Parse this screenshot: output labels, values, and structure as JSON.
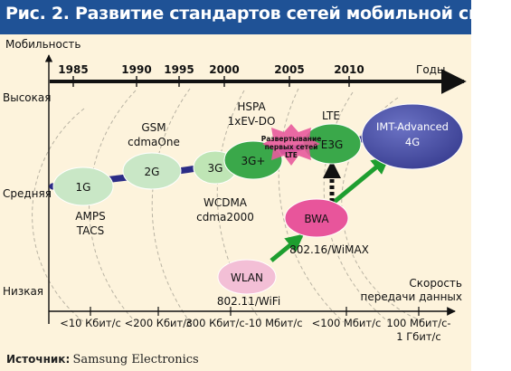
{
  "title": "Рис. 2. Развитие стандартов сетей мобильной связи",
  "y_axis": {
    "label": "Мобильность",
    "levels": [
      "Высокая",
      "Средняя",
      "Низкая"
    ]
  },
  "time_axis": {
    "label": "Годы",
    "years": [
      "1985",
      "1990",
      "1995",
      "2000",
      "2005",
      "2010"
    ]
  },
  "x_axis": {
    "label_line1": "Скорость",
    "label_line2": "передачи данных",
    "ticks": [
      {
        "line1": "<10 Кбит/с",
        "line2": ""
      },
      {
        "line1": "<200 Кбит/с",
        "line2": ""
      },
      {
        "line1": "300 Кбит/с-10 Мбит/с",
        "line2": ""
      },
      {
        "line1": "<100 Мбит/с",
        "line2": ""
      },
      {
        "line1": "100 Мбит/с-",
        "line2": "1 Гбит/с"
      }
    ]
  },
  "nodes": [
    {
      "id": "1g",
      "label": "1G",
      "color": "#c9e7c6"
    },
    {
      "id": "2g",
      "label": "2G",
      "color": "#c9e7c6"
    },
    {
      "id": "3g",
      "label": "3G",
      "color": "#bfe5b5"
    },
    {
      "id": "3gplus",
      "label": "3G+",
      "color": "#3aa84a"
    },
    {
      "id": "e3g",
      "label": "E3G",
      "color": "#3aa84a"
    },
    {
      "id": "imt",
      "label_line1": "IMT-Advanced",
      "label_line2": "4G",
      "color": "#4d55a8"
    },
    {
      "id": "bwa",
      "label": "BWA",
      "color": "#e8559b"
    },
    {
      "id": "wlan",
      "label": "WLAN",
      "color": "#f3bfd6"
    }
  ],
  "star": {
    "line1": "Развертывание",
    "line2": "первых сетей",
    "line3": "LTE",
    "color": "#e85a9c"
  },
  "node_captions": {
    "amps": "AMPS",
    "tacs": "TACS",
    "gsm": "GSM",
    "cdmaone": "cdmaOne",
    "hspa": "HSPA",
    "evdo": "1xEV-DO",
    "wcdma": "WCDMA",
    "cdma2000": "cdma2000",
    "lte": "LTE",
    "wimax": "802.16/WiMAX",
    "wifi": "802.11/WiFi"
  },
  "colors": {
    "title_bar": "#1f5296",
    "background": "#fdf3dc",
    "evolution_path": "#2b2c86",
    "green_arrow": "#1e9e2f",
    "dashed_arrow": "#111111"
  },
  "source": {
    "label": "Источник:",
    "value": "Samsung Electronics"
  }
}
